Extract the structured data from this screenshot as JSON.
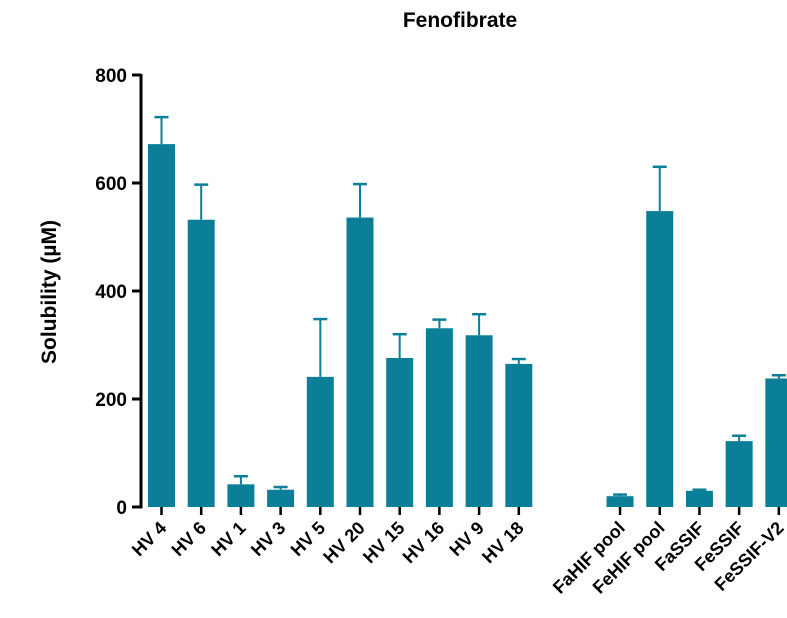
{
  "chart_data": {
    "type": "bar",
    "title": "Fenofibrate",
    "xlabel": "",
    "ylabel": "Solubility (µM)",
    "ylim": [
      0,
      800
    ],
    "yticks": [
      0,
      200,
      400,
      600,
      800
    ],
    "categories": [
      "HV 4",
      "HV 6",
      "HV 1",
      "HV 3",
      "HV 5",
      "HV 20",
      "HV 15",
      "HV 16",
      "HV 9",
      "HV 18",
      "FaHIF pool",
      "FeHIF pool",
      "FaSSIF",
      "FeSSIF",
      "FeSSIF-V2"
    ],
    "values": [
      672,
      532,
      42,
      32,
      241,
      536,
      276,
      331,
      318,
      265,
      20,
      548,
      30,
      122,
      238
    ],
    "error": [
      50,
      65,
      15,
      5,
      107,
      62,
      44,
      16,
      39,
      9,
      3,
      82,
      2,
      10,
      6
    ],
    "bar_color": "#0b7f98",
    "grid": false,
    "legend": "none"
  }
}
